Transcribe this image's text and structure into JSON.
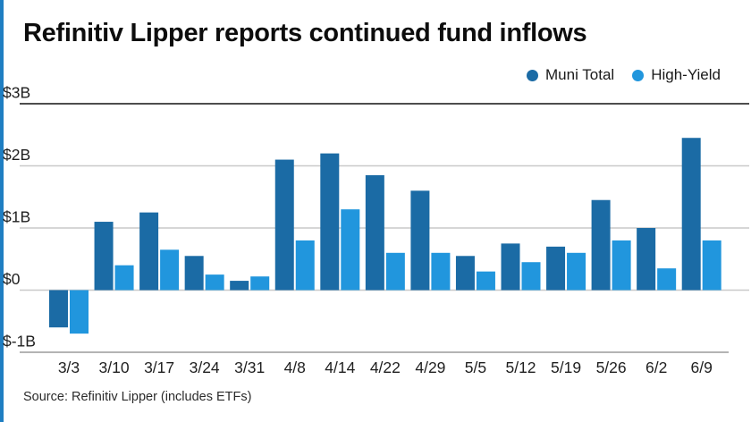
{
  "title": "Refinitiv Lipper reports continued fund inflows",
  "source": "Source: Refinitiv Lipper (includes ETFs)",
  "colors": {
    "muni_total": "#1b6ba5",
    "high_yield": "#2196dd",
    "grid": "#c9c9c9",
    "grid_top": "#4d4d4d",
    "grid_bottom": "#9b9b9b",
    "axis_text": "#1f1f1f",
    "accent_strip": "#1f7ec2"
  },
  "chart_data": {
    "type": "bar",
    "title": "Refinitiv Lipper reports continued fund inflows",
    "categories": [
      "3/3",
      "3/10",
      "3/17",
      "3/24",
      "3/31",
      "4/8",
      "4/14",
      "4/22",
      "4/29",
      "5/5",
      "5/12",
      "5/19",
      "5/26",
      "6/2",
      "6/9"
    ],
    "series": [
      {
        "name": "Muni Total",
        "color_key": "muni_total",
        "values": [
          -0.6,
          1.1,
          1.25,
          0.55,
          0.15,
          2.1,
          2.2,
          1.85,
          1.6,
          0.55,
          0.75,
          0.7,
          1.45,
          1.0,
          2.45
        ]
      },
      {
        "name": "High-Yield",
        "color_key": "high_yield",
        "values": [
          -0.7,
          0.4,
          0.65,
          0.25,
          0.22,
          0.8,
          1.3,
          0.6,
          0.6,
          0.3,
          0.45,
          0.6,
          0.8,
          0.35,
          0.8
        ]
      }
    ],
    "y_ticks": [
      {
        "label": "$3B",
        "value": 3
      },
      {
        "label": "$2B",
        "value": 2
      },
      {
        "label": "$1B",
        "value": 1
      },
      {
        "label": "$0",
        "value": 0
      },
      {
        "label": "$-1B",
        "value": -1
      }
    ],
    "ylim": [
      -1,
      3
    ],
    "units": "billions USD",
    "grid": true,
    "legend_position": "top-right"
  }
}
